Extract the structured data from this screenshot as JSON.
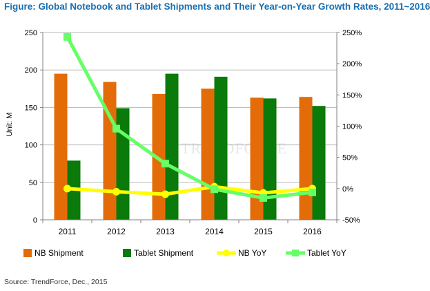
{
  "title": "Figure: Global Notebook and Tablet Shipments and Their Year-on-Year Growth Rates, 2011~2016",
  "source": "Source: TrendForce, Dec., 2015",
  "watermark": "TRENDFORCE",
  "colors": {
    "title": "#1a6fb0",
    "nb_shipment": "#e36c09",
    "tablet_shipment": "#0a7a0a",
    "nb_yoy": "#ffff00",
    "tablet_yoy": "#66ff66"
  },
  "chart_data": {
    "type": "bar",
    "categories": [
      "2011",
      "2012",
      "2013",
      "2014",
      "2015",
      "2016"
    ],
    "ylabel": "Unit: M",
    "ylim": [
      0,
      250
    ],
    "y_ticks": [
      "0",
      "50",
      "100",
      "150",
      "200",
      "250"
    ],
    "y2lim": [
      -50,
      250
    ],
    "y2_ticks": [
      "-50%",
      "0%",
      "50%",
      "100%",
      "150%",
      "200%",
      "250%"
    ],
    "grid": "horizontal",
    "legend_position": "bottom",
    "series": [
      {
        "name": "NB Shipment",
        "kind": "bar",
        "axis": "left",
        "values": [
          195,
          184,
          168,
          175,
          163,
          164
        ]
      },
      {
        "name": "Tablet Shipment",
        "kind": "bar",
        "axis": "left",
        "values": [
          79,
          149,
          195,
          191,
          162,
          152
        ]
      },
      {
        "name": "NB YoY",
        "kind": "line",
        "axis": "right",
        "unit": "%",
        "values": [
          0,
          -5,
          -9,
          3,
          -7,
          0
        ]
      },
      {
        "name": "Tablet YoY",
        "kind": "line",
        "axis": "right",
        "unit": "%",
        "values": [
          243,
          96,
          40,
          -1,
          -15,
          -6
        ]
      }
    ]
  }
}
